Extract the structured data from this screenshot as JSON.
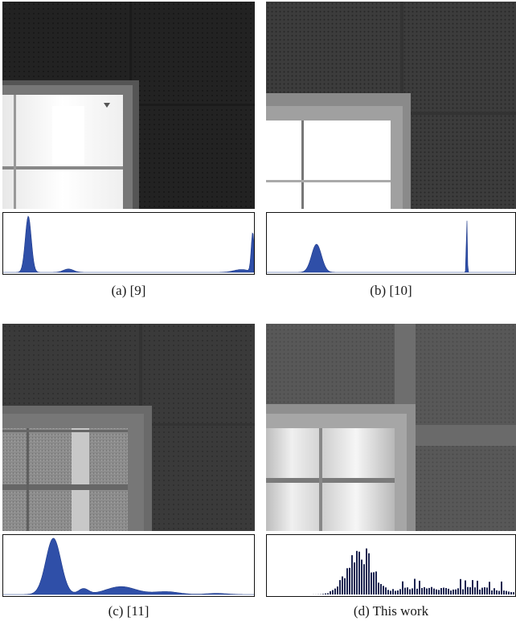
{
  "figure": {
    "panels": [
      {
        "id": "a",
        "caption": "(a)   [9]",
        "histogram": {
          "type": "area",
          "peaks": [
            {
              "x": 0.1,
              "height": 1.0,
              "width": 0.012
            },
            {
              "x": 0.26,
              "height": 0.06,
              "width": 0.02
            },
            {
              "x": 0.95,
              "height": 0.05,
              "width": 0.03
            },
            {
              "x": 0.995,
              "height": 0.7,
              "width": 0.006
            }
          ]
        }
      },
      {
        "id": "b",
        "caption": "(b)   [10]",
        "histogram": {
          "type": "area",
          "peaks": [
            {
              "x": 0.2,
              "height": 0.5,
              "width": 0.02
            },
            {
              "x": 0.805,
              "height": 1.0,
              "width": 0.002
            }
          ]
        }
      },
      {
        "id": "c",
        "caption": "(c)   [11]",
        "histogram": {
          "type": "area",
          "peaks": [
            {
              "x": 0.2,
              "height": 1.0,
              "width": 0.03
            },
            {
              "x": 0.32,
              "height": 0.1,
              "width": 0.02
            },
            {
              "x": 0.47,
              "height": 0.14,
              "width": 0.06
            },
            {
              "x": 0.65,
              "height": 0.05,
              "width": 0.05
            },
            {
              "x": 0.85,
              "height": 0.02,
              "width": 0.04
            }
          ]
        }
      },
      {
        "id": "d",
        "caption": "(d) This work",
        "histogram": {
          "type": "bar",
          "peaks": [
            {
              "x": 0.37,
              "height": 0.85,
              "width": 0.05
            },
            {
              "x": 0.6,
              "height": 0.12,
              "width": 0.08
            },
            {
              "x": 0.85,
              "height": 0.12,
              "width": 0.12
            }
          ]
        }
      }
    ]
  }
}
